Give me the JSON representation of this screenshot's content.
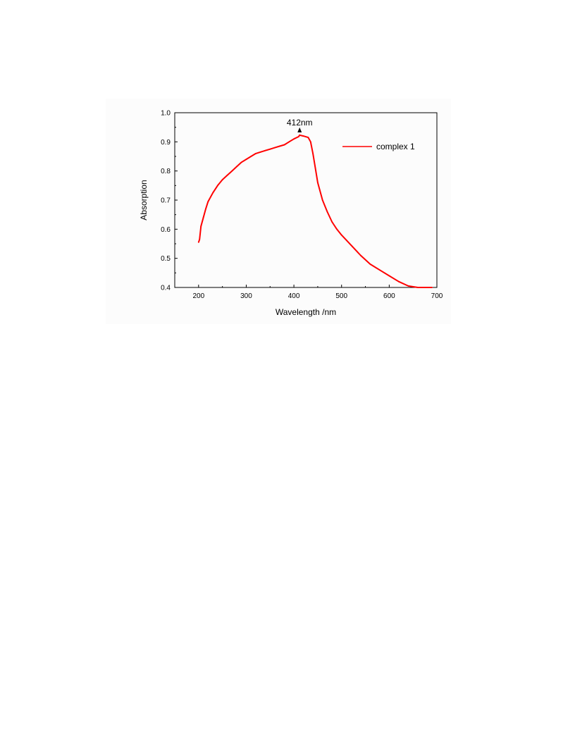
{
  "chart_data": {
    "type": "line",
    "title": "",
    "xlabel": "Wavelength /nm",
    "ylabel": "Absorption",
    "xlim": [
      150,
      700
    ],
    "ylim": [
      0.4,
      1.0
    ],
    "xticks": [
      200,
      300,
      400,
      500,
      600,
      700
    ],
    "xtick_labels": [
      "200",
      "300",
      "400",
      "500",
      "600",
      "700"
    ],
    "yticks": [
      0.4,
      0.5,
      0.6,
      0.7,
      0.8,
      0.9,
      1.0
    ],
    "ytick_labels": [
      "0.4",
      "0.5",
      "0.6",
      "0.7",
      "0.8",
      "0.9",
      "1.0"
    ],
    "grid": false,
    "legend_position": "top-right",
    "annotation": {
      "label": "412nm",
      "x": 412,
      "y": 0.923
    },
    "series": [
      {
        "name": "complex 1",
        "color": "#ff0000",
        "x": [
          200,
          202,
          205,
          210,
          215,
          220,
          230,
          240,
          250,
          260,
          270,
          280,
          290,
          300,
          310,
          320,
          330,
          340,
          350,
          360,
          370,
          380,
          390,
          400,
          410,
          412,
          420,
          430,
          435,
          440,
          445,
          450,
          460,
          470,
          480,
          490,
          500,
          520,
          540,
          560,
          580,
          600,
          620,
          640,
          660,
          680,
          690
        ],
        "y": [
          0.555,
          0.565,
          0.61,
          0.64,
          0.67,
          0.695,
          0.725,
          0.75,
          0.77,
          0.785,
          0.8,
          0.815,
          0.83,
          0.84,
          0.85,
          0.86,
          0.865,
          0.87,
          0.875,
          0.88,
          0.885,
          0.89,
          0.9,
          0.91,
          0.918,
          0.923,
          0.92,
          0.915,
          0.9,
          0.86,
          0.81,
          0.76,
          0.7,
          0.66,
          0.625,
          0.6,
          0.58,
          0.545,
          0.51,
          0.48,
          0.46,
          0.44,
          0.42,
          0.405,
          0.4,
          0.4,
          0.4
        ]
      }
    ]
  }
}
